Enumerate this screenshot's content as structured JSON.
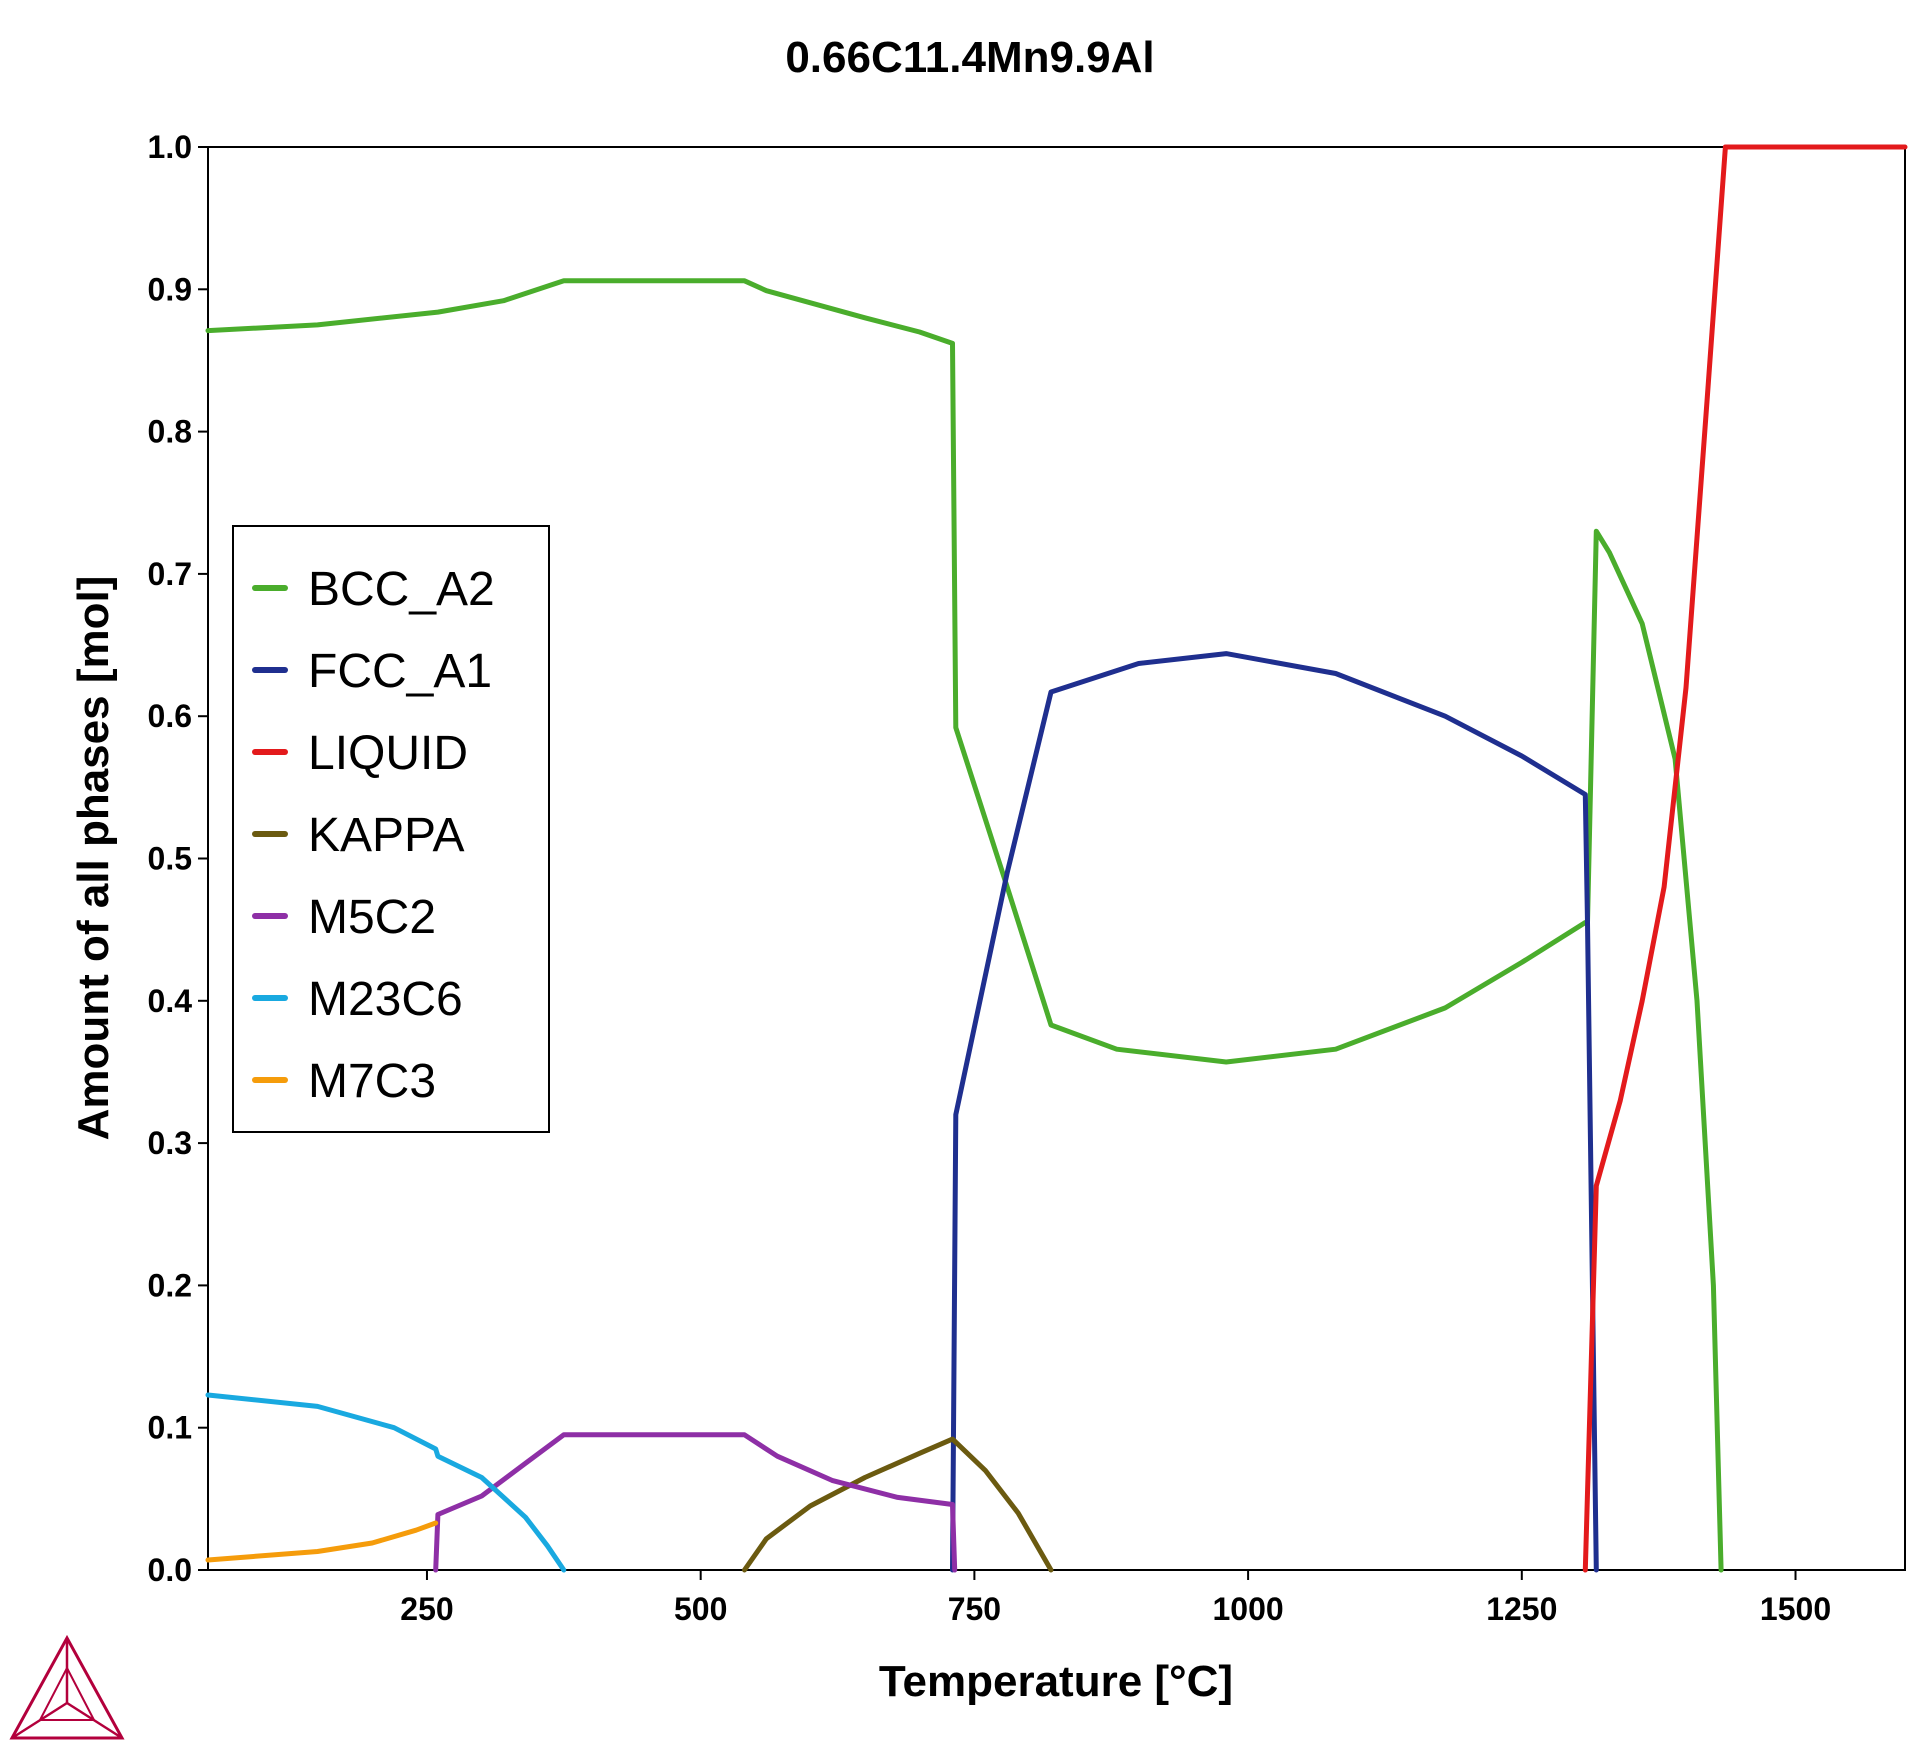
{
  "chart_data": {
    "type": "line",
    "title": "0.66C11.4Mn9.9Al",
    "xlabel": "Temperature [°C]",
    "ylabel": "Amount of all phases [mol]",
    "xlim": [
      50,
      1600
    ],
    "ylim": [
      0,
      1.0
    ],
    "xticks": [
      250,
      500,
      750,
      1000,
      1250,
      1500
    ],
    "yticks": [
      0.0,
      0.1,
      0.2,
      0.3,
      0.4,
      0.5,
      0.6,
      0.7,
      0.8,
      0.9,
      1.0
    ],
    "xtick_labels": [
      "250",
      "500",
      "750",
      "1000",
      "1250",
      "1500"
    ],
    "ytick_labels": [
      "0.0",
      "0.1",
      "0.2",
      "0.3",
      "0.4",
      "0.5",
      "0.6",
      "0.7",
      "0.8",
      "0.9",
      "1.0"
    ],
    "grid": false,
    "legend_position": "left-middle",
    "series": [
      {
        "name": "BCC_A2",
        "color": "#4aad2c",
        "points": [
          [
            50,
            0.871
          ],
          [
            150,
            0.875
          ],
          [
            260,
            0.884
          ],
          [
            320,
            0.892
          ],
          [
            375,
            0.906
          ],
          [
            450,
            0.906
          ],
          [
            540,
            0.906
          ],
          [
            560,
            0.899
          ],
          [
            650,
            0.88
          ],
          [
            700,
            0.87
          ],
          [
            730,
            0.862
          ],
          [
            733,
            0.592
          ],
          [
            780,
            0.48
          ],
          [
            820,
            0.383
          ],
          [
            880,
            0.366
          ],
          [
            980,
            0.357
          ],
          [
            1080,
            0.366
          ],
          [
            1180,
            0.395
          ],
          [
            1250,
            0.427
          ],
          [
            1308,
            0.455
          ],
          [
            1310,
            0.455
          ],
          [
            1318,
            0.73
          ],
          [
            1330,
            0.715
          ],
          [
            1360,
            0.665
          ],
          [
            1390,
            0.57
          ],
          [
            1410,
            0.4
          ],
          [
            1425,
            0.2
          ],
          [
            1432,
            0.0
          ]
        ]
      },
      {
        "name": "FCC_A1",
        "color": "#1f2f8f",
        "points": [
          [
            730,
            0.0
          ],
          [
            733,
            0.32
          ],
          [
            780,
            0.49
          ],
          [
            820,
            0.617
          ],
          [
            900,
            0.637
          ],
          [
            980,
            0.644
          ],
          [
            1080,
            0.63
          ],
          [
            1180,
            0.6
          ],
          [
            1250,
            0.572
          ],
          [
            1308,
            0.545
          ],
          [
            1310,
            0.455
          ],
          [
            1318,
            0.0
          ]
        ]
      },
      {
        "name": "LIQUID",
        "color": "#e31a1c",
        "points": [
          [
            1308,
            0.0
          ],
          [
            1318,
            0.27
          ],
          [
            1340,
            0.33
          ],
          [
            1360,
            0.4
          ],
          [
            1380,
            0.48
          ],
          [
            1400,
            0.62
          ],
          [
            1420,
            0.83
          ],
          [
            1436,
            1.0
          ],
          [
            1600,
            1.0
          ]
        ]
      },
      {
        "name": "KAPPA",
        "color": "#6b5a10",
        "points": [
          [
            540,
            0.0
          ],
          [
            560,
            0.022
          ],
          [
            600,
            0.045
          ],
          [
            650,
            0.065
          ],
          [
            700,
            0.082
          ],
          [
            730,
            0.092
          ],
          [
            760,
            0.07
          ],
          [
            790,
            0.04
          ],
          [
            820,
            0.0
          ]
        ]
      },
      {
        "name": "M5C2",
        "color": "#8e2fa6",
        "points": [
          [
            258,
            0.0
          ],
          [
            260,
            0.039
          ],
          [
            300,
            0.052
          ],
          [
            340,
            0.075
          ],
          [
            375,
            0.095
          ],
          [
            450,
            0.095
          ],
          [
            540,
            0.095
          ],
          [
            570,
            0.08
          ],
          [
            620,
            0.063
          ],
          [
            680,
            0.051
          ],
          [
            730,
            0.046
          ],
          [
            732,
            0.0
          ]
        ]
      },
      {
        "name": "M23C6",
        "color": "#19a9e0",
        "points": [
          [
            50,
            0.123
          ],
          [
            150,
            0.115
          ],
          [
            220,
            0.1
          ],
          [
            258,
            0.085
          ],
          [
            260,
            0.08
          ],
          [
            300,
            0.065
          ],
          [
            340,
            0.037
          ],
          [
            360,
            0.017
          ],
          [
            375,
            0.0
          ]
        ]
      },
      {
        "name": "M7C3",
        "color": "#f59c0b",
        "points": [
          [
            50,
            0.007
          ],
          [
            150,
            0.013
          ],
          [
            200,
            0.019
          ],
          [
            240,
            0.028
          ],
          [
            258,
            0.033
          ]
        ]
      }
    ]
  },
  "logo": {
    "name": "Thermo-Calc logo",
    "color": "#b3003c"
  }
}
